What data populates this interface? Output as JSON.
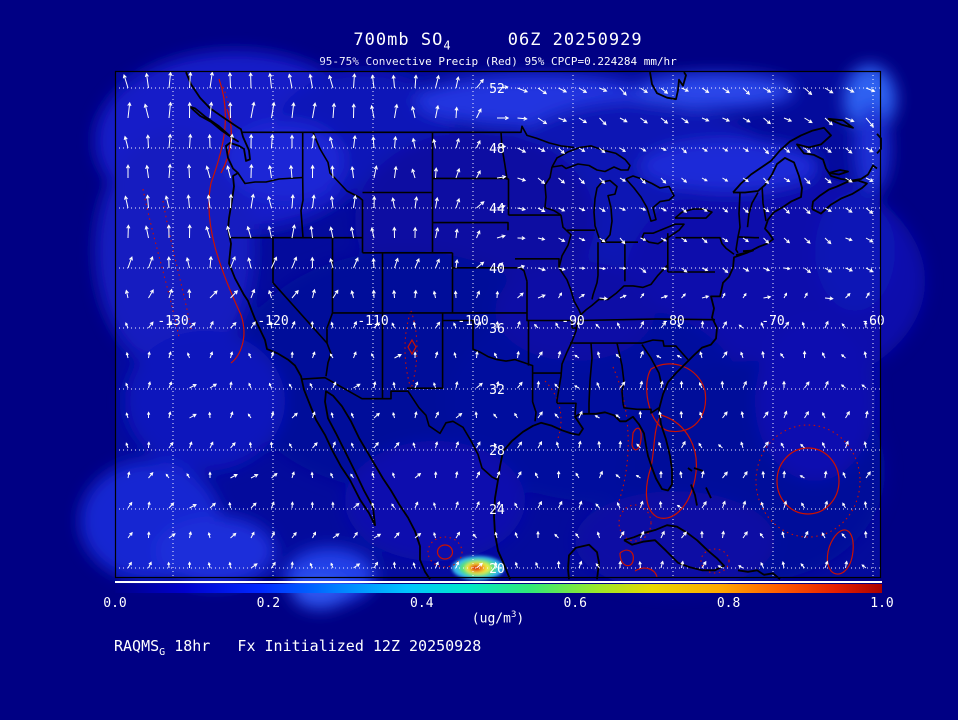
{
  "header": {
    "title_main": "700mb SO",
    "title_subscript": "4",
    "title_gap": "     ",
    "title_time": "06Z 20250929",
    "subtitle": "95-75% Convective Precip (Red) 95% CPCP=0.224284 mm/hr"
  },
  "map": {
    "lat_labels": [
      "52",
      "48",
      "44",
      "40",
      "36",
      "32",
      "28",
      "24",
      "20"
    ],
    "lon_labels": [
      "-130",
      "-120",
      "-110",
      "-100",
      "-90",
      "-80",
      "-70",
      "-60"
    ]
  },
  "colorbar": {
    "tick_labels": [
      "0.0",
      "0.2",
      "0.4",
      "0.6",
      "0.8",
      "1.0"
    ],
    "units_prefix": "(ug/m",
    "units_exp": "3",
    "units_suffix": ")"
  },
  "footer": {
    "model": "RAQMS",
    "model_subscript": "G",
    "text": " 18hr   Fx Initialized 12Z 20250928"
  },
  "colors": {
    "background": "#000084",
    "text": "#ffffff",
    "contour_red": "#cc1100",
    "vector_white": "#ffffff"
  },
  "chart_data": {
    "type": "heatmap",
    "title": "700mb SO4    06Z 20250929",
    "subtitle": "95-75% Convective Precip (Red) 95% CPCP=0.224284 mm/hr",
    "variable": "SO4 concentration at 700 mb",
    "units": "ug/m3",
    "model_run": "RAQMS_G 18hr Fx Initialized 12Z 20250928",
    "colorbar": {
      "min": 0.0,
      "max": 1.0,
      "ticks": [
        0.0,
        0.2,
        0.4,
        0.6,
        0.8,
        1.0
      ],
      "palette_order": "dark blue -> blue -> cyan -> green -> yellow -> orange -> dark red"
    },
    "map_extent": {
      "lon_min": -135.8,
      "lon_max": -59.2,
      "lat_min": 19.3,
      "lat_max": 53.0
    },
    "lat_ticks": [
      52,
      48,
      44,
      40,
      36,
      32,
      28,
      24,
      20
    ],
    "lon_ticks": [
      -130,
      -120,
      -110,
      -100,
      -90,
      -80,
      -70,
      -60
    ],
    "grid": "white dotted graticule every 4 deg lat / 10 deg lon",
    "overlays": [
      {
        "name": "wind vectors at 700mb",
        "style": "small white arrows on ~2deg grid"
      },
      {
        "name": "convective precip 75% band",
        "style": "red solid contours (Pacific coast, Florida/Bahamas, western Atlantic)"
      },
      {
        "name": "convective precip 95% band",
        "style": "red dotted contours"
      }
    ],
    "field_character": "mostly 0.0-0.15 ug/m3 (dark blue shades) across domain; brighter blue patches along top edge and bottom-left",
    "notable_features": [
      {
        "name": "SO4 hotspot maximum",
        "lon": -99.5,
        "lat": 20.0,
        "value_approx": "0.9-1.0 ug/m3"
      }
    ]
  }
}
